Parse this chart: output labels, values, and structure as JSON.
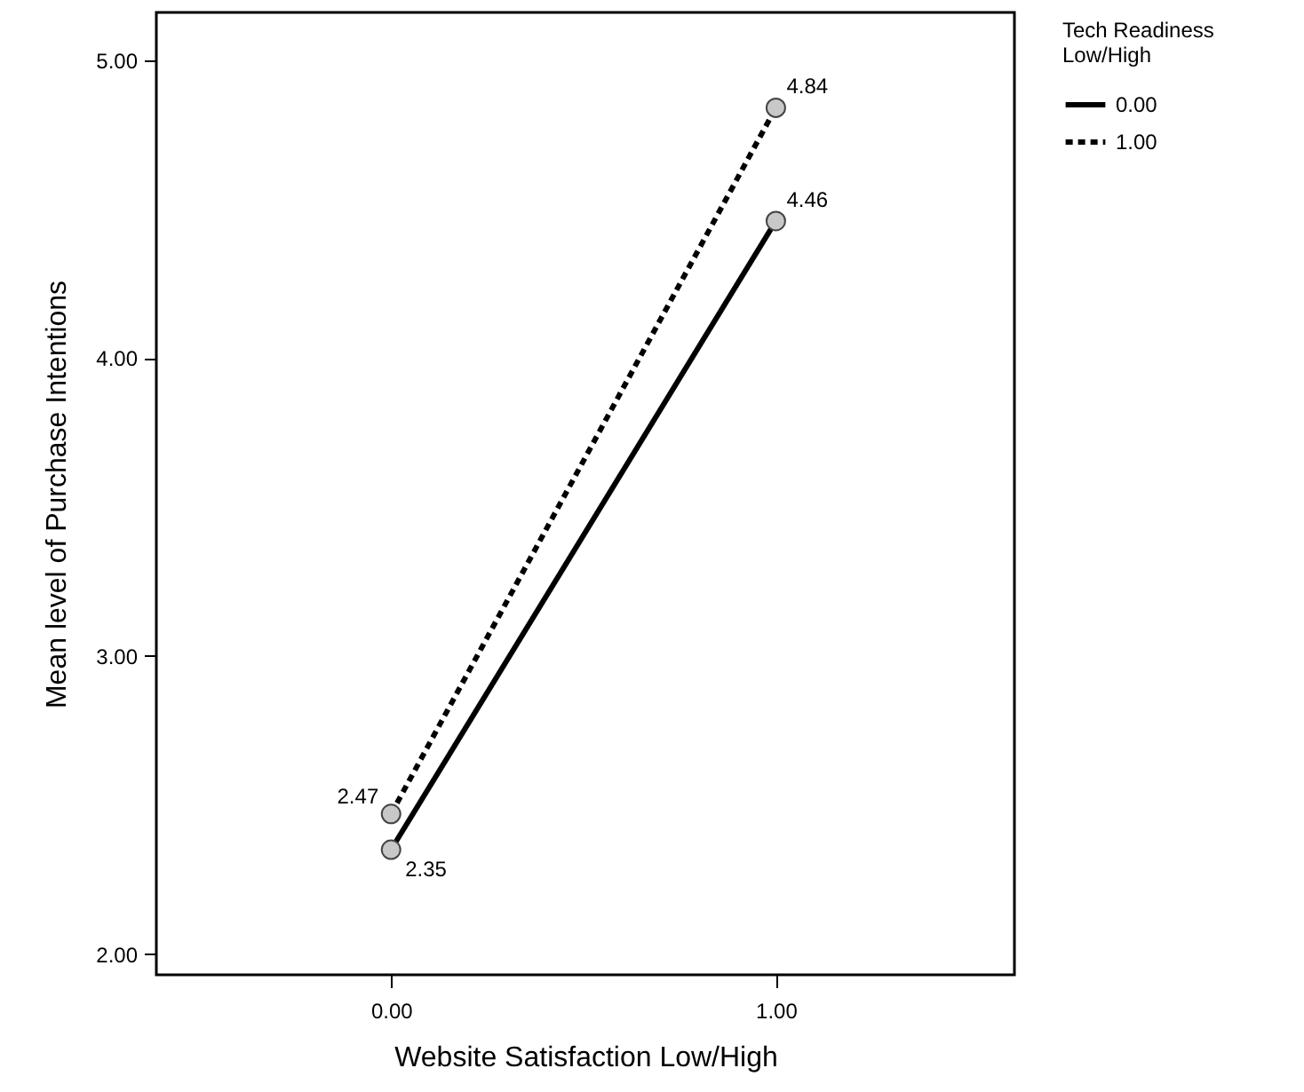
{
  "chart_data": {
    "type": "line",
    "xlabel": "Website Satisfaction Low/High",
    "ylabel": "Mean level of Purchase Intentions",
    "legend_title": "Tech Readiness Low/High",
    "legend": "top right",
    "marker": "circle",
    "data_labels": true,
    "grid": false,
    "x": [
      0,
      1
    ],
    "xlim": [
      -0.61,
      1.62
    ],
    "xticks": [
      {
        "value": 0,
        "label": "0.00"
      },
      {
        "value": 1,
        "label": "1.00"
      }
    ],
    "ylim": [
      1.93,
      5.16
    ],
    "yticks": [
      {
        "value": 2,
        "label": "2.00"
      },
      {
        "value": 3,
        "label": "3.00"
      },
      {
        "value": 4,
        "label": "4.00"
      },
      {
        "value": 5,
        "label": "5.00"
      }
    ],
    "series": [
      {
        "name": "0.00",
        "color": "#000000",
        "line_style": "solid",
        "values": [
          2.35,
          4.46
        ]
      },
      {
        "name": "1.00",
        "color": "#000000",
        "line_style": "dashed",
        "values": [
          2.47,
          4.84
        ]
      }
    ]
  }
}
